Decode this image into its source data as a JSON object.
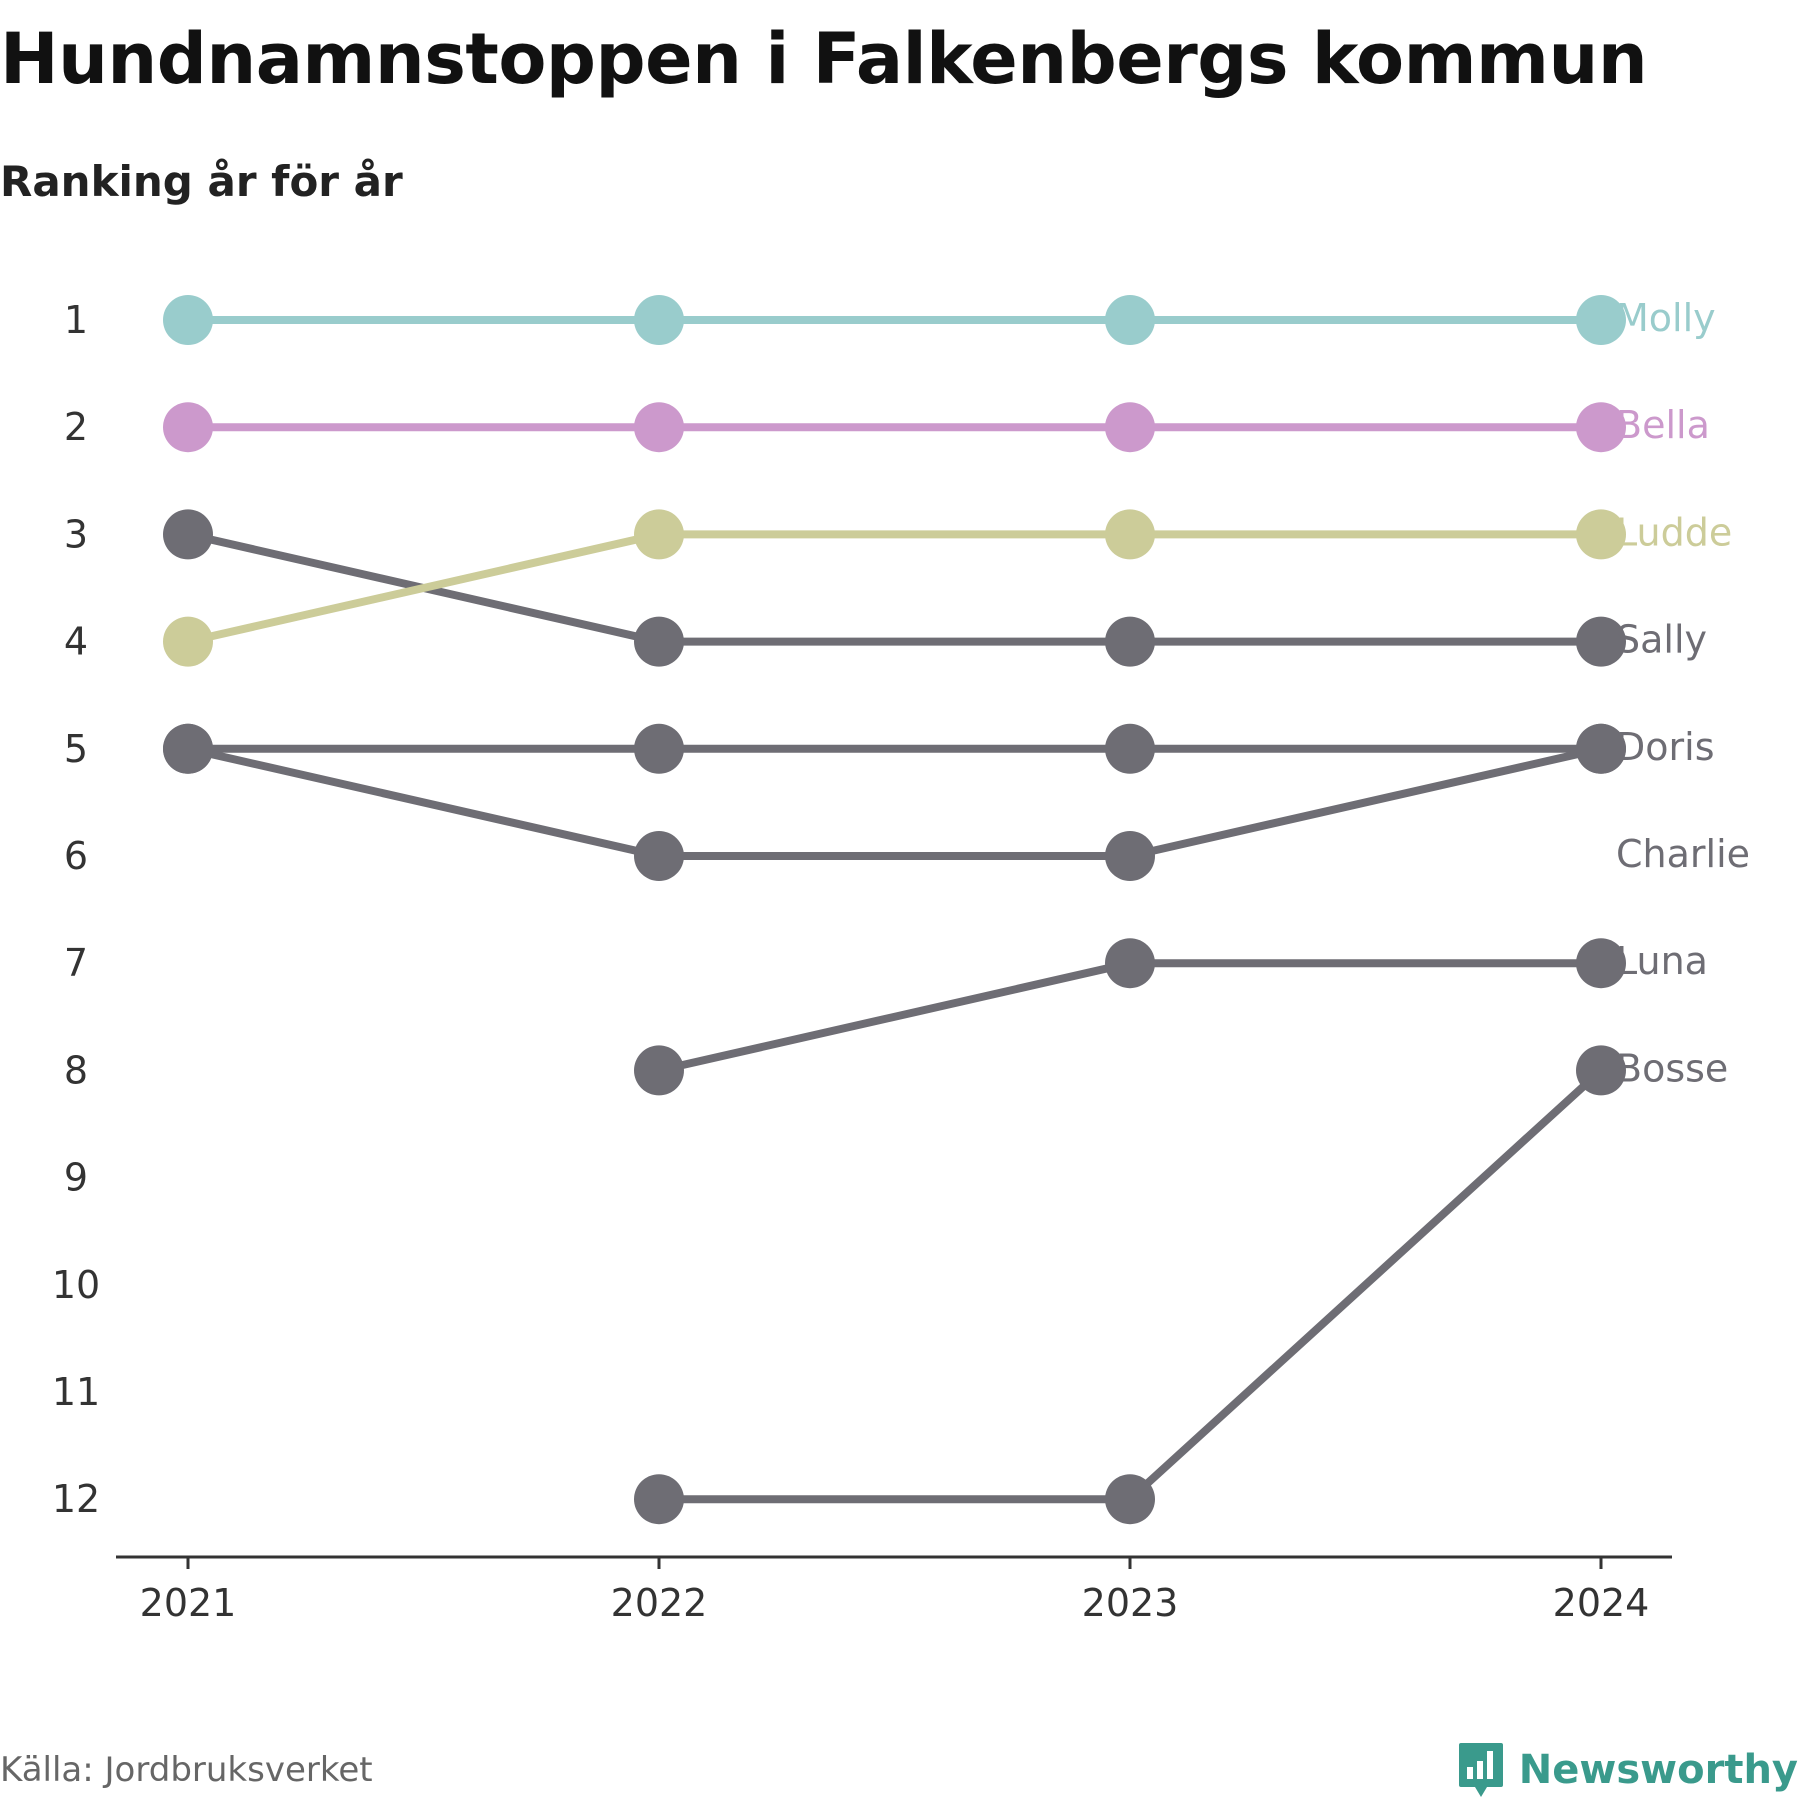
{
  "title": "Hundnamnstoppen i Falkenbergs kommun",
  "subtitle": "Ranking år för år",
  "source": "Källa: Jordbruksverket",
  "brand": {
    "name": "Newsworthy",
    "color": "#3a9a8c",
    "icon": "newsworthy-logo-icon"
  },
  "chart_data": {
    "type": "line",
    "title": "Hundnamnstoppen i Falkenbergs kommun",
    "subtitle": "Ranking år för år",
    "x": [
      "2021",
      "2022",
      "2023",
      "2024"
    ],
    "y_ticks": [
      1,
      2,
      3,
      4,
      5,
      6,
      7,
      8,
      9,
      10,
      11,
      12
    ],
    "ylim": [
      1,
      12
    ],
    "y_inverted": true,
    "grid": false,
    "legend": "labels at right end of lines",
    "default_color": "#6e6d74",
    "series": [
      {
        "name": "Molly",
        "values": [
          1,
          1,
          1,
          1
        ],
        "color": "#99cccc"
      },
      {
        "name": "Bella",
        "values": [
          2,
          2,
          2,
          2
        ],
        "color": "#cc99cc"
      },
      {
        "name": "Ludde",
        "values": [
          4,
          3,
          3,
          3
        ],
        "color": "#cccc99"
      },
      {
        "name": "Sally",
        "values": [
          3,
          4,
          4,
          4
        ],
        "color": "#6e6d74"
      },
      {
        "name": "Doris",
        "values": [
          5,
          5,
          5,
          5
        ],
        "color": "#6e6d74"
      },
      {
        "name": "Charlie",
        "values": [
          5,
          6,
          6,
          5
        ],
        "color": "#6e6d74"
      },
      {
        "name": "Luna",
        "values": [
          null,
          8,
          7,
          7
        ],
        "color": "#6e6d74"
      },
      {
        "name": "Bosse",
        "values": [
          null,
          12,
          12,
          8
        ],
        "color": "#6e6d74"
      }
    ]
  }
}
